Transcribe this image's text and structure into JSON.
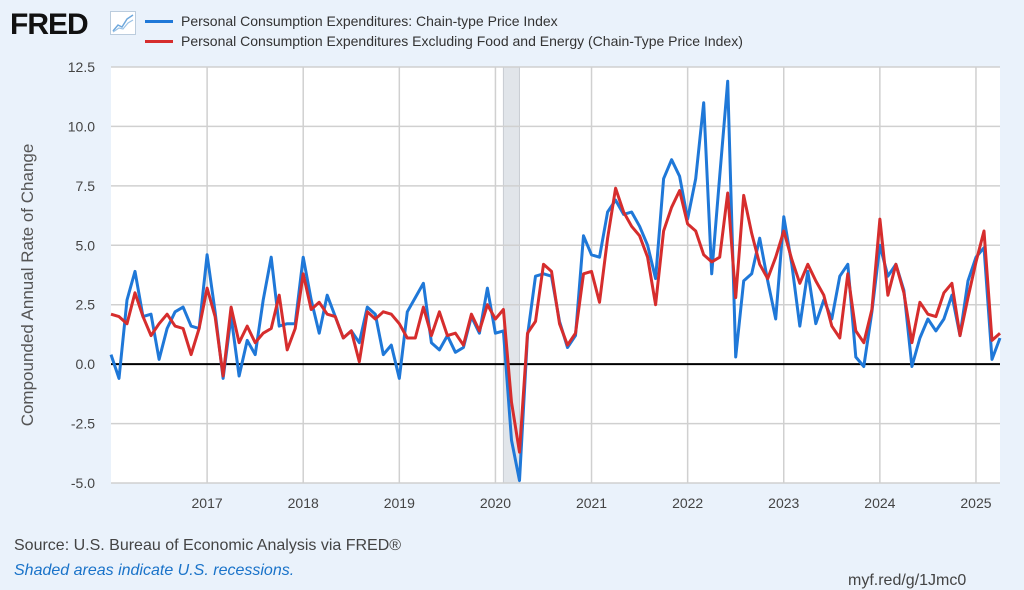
{
  "header": {
    "logo": "FRED",
    "logo_icon": "line-chart-icon"
  },
  "source": "Source: U.S. Bureau of Economic Analysis via FRED®",
  "note": "Shaded areas indicate U.S. recessions.",
  "url": "myf.red/g/1Jmc0",
  "chart_data": {
    "type": "line",
    "title": "",
    "xlabel": "",
    "ylabel": "Compounded Annual Rate of Change",
    "ylim": [
      -5.0,
      12.5
    ],
    "xlim": [
      2016.0,
      2025.25
    ],
    "yticks": [
      "12.5",
      "10.0",
      "7.5",
      "5.0",
      "2.5",
      "0.0",
      "-2.5",
      "-5.0"
    ],
    "ytick_values": [
      12.5,
      10,
      7.5,
      5,
      2.5,
      0,
      -2.5,
      -5
    ],
    "xticks": [
      "2017",
      "2018",
      "2019",
      "2020",
      "2021",
      "2022",
      "2023",
      "2024",
      "2025"
    ],
    "xtick_values": [
      2017,
      2018,
      2019,
      2020,
      2021,
      2022,
      2023,
      2024,
      2025
    ],
    "grid": true,
    "legend_placement": "top-left",
    "start": "2016-01",
    "frequency": "monthly",
    "recessions": [
      [
        2020.083,
        2020.25
      ]
    ],
    "series": [
      {
        "name": "Personal Consumption Expenditures: Chain-type Price Index",
        "color": "#1f78d8",
        "values": [
          0.4,
          -0.6,
          2.7,
          3.9,
          2.0,
          2.1,
          0.2,
          1.5,
          2.2,
          2.4,
          1.6,
          1.5,
          4.6,
          2.2,
          -0.6,
          2.0,
          -0.5,
          1.0,
          0.4,
          2.7,
          4.5,
          1.6,
          1.7,
          1.7,
          4.5,
          2.7,
          1.3,
          2.9,
          2.0,
          1.1,
          1.4,
          0.9,
          2.4,
          2.1,
          0.4,
          0.8,
          -0.6,
          2.2,
          2.8,
          3.4,
          0.9,
          0.6,
          1.2,
          0.5,
          0.7,
          2.0,
          1.3,
          3.2,
          1.3,
          1.4,
          -3.2,
          -4.9,
          1.2,
          3.7,
          3.8,
          3.7,
          1.8,
          0.7,
          1.2,
          5.4,
          4.6,
          4.5,
          6.4,
          6.9,
          6.3,
          6.4,
          5.8,
          5.0,
          3.6,
          7.8,
          8.6,
          7.9,
          6.1,
          7.8,
          11.0,
          3.8,
          7.9,
          11.9,
          0.3,
          3.5,
          3.8,
          5.3,
          3.5,
          1.9,
          6.2,
          4.2,
          1.6,
          3.9,
          1.7,
          2.7,
          1.9,
          3.7,
          4.2,
          0.3,
          -0.1,
          2.2,
          5.0,
          3.7,
          4.2,
          3.1,
          -0.1,
          1.1,
          1.9,
          1.4,
          1.9,
          2.9,
          1.2,
          3.5,
          4.5,
          4.9,
          0.2,
          1.1
        ]
      },
      {
        "name": "Personal Consumption Expenditures Excluding Food and Energy (Chain-Type Price Index)",
        "color": "#d62d2d",
        "values": [
          2.1,
          2.0,
          1.7,
          3.0,
          2.0,
          1.2,
          1.7,
          2.1,
          1.6,
          1.5,
          0.4,
          1.5,
          3.2,
          2.0,
          -0.5,
          2.4,
          0.9,
          1.6,
          0.9,
          1.3,
          1.5,
          2.9,
          0.6,
          1.5,
          3.8,
          2.3,
          2.6,
          2.1,
          2.0,
          1.1,
          1.4,
          0.1,
          2.2,
          1.9,
          2.2,
          2.1,
          1.7,
          1.1,
          1.1,
          2.4,
          1.2,
          2.2,
          1.2,
          1.3,
          0.8,
          2.1,
          1.4,
          2.5,
          1.9,
          2.3,
          -1.6,
          -3.7,
          1.3,
          1.8,
          4.2,
          3.9,
          1.7,
          0.8,
          1.3,
          3.8,
          3.9,
          2.6,
          5.3,
          7.4,
          6.4,
          5.8,
          5.4,
          4.5,
          2.5,
          5.6,
          6.6,
          7.3,
          5.9,
          5.6,
          4.6,
          4.3,
          4.5,
          7.2,
          2.8,
          7.1,
          5.5,
          4.2,
          3.6,
          4.5,
          5.6,
          4.4,
          3.4,
          4.2,
          3.5,
          2.9,
          1.6,
          1.1,
          3.8,
          1.4,
          0.9,
          2.3,
          6.1,
          2.9,
          4.2,
          3.0,
          0.9,
          2.6,
          2.1,
          2.0,
          3.0,
          3.4,
          1.2,
          2.8,
          4.3,
          5.6,
          1.0,
          1.3
        ]
      }
    ]
  }
}
